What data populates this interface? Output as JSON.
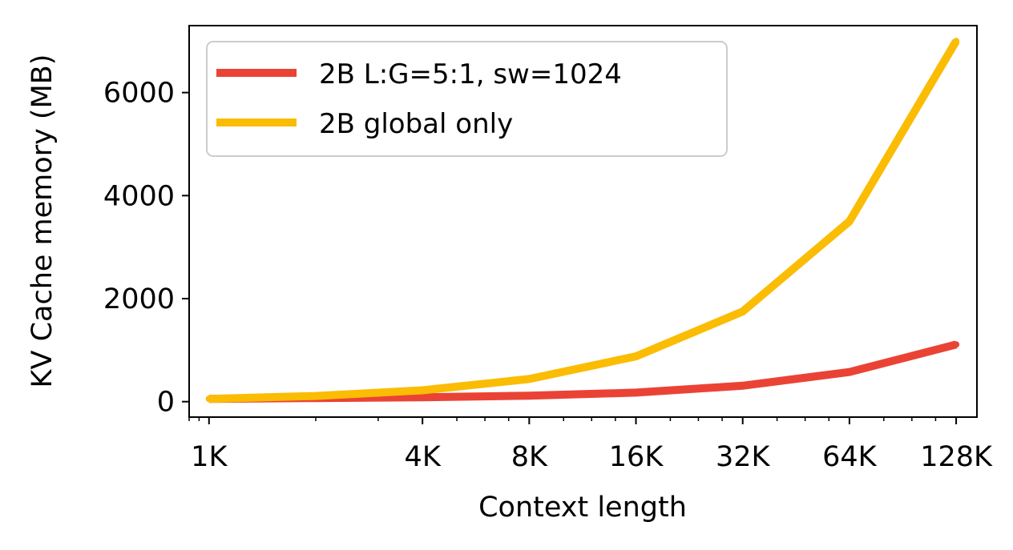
{
  "chart_data": {
    "type": "line",
    "xscale": "log2",
    "xlabel": "Context length",
    "ylabel": "KV Cache memory (MB)",
    "x": [
      1024,
      2048,
      4096,
      8192,
      16384,
      32768,
      65536,
      131072
    ],
    "x_ticks": [
      {
        "value": 1024,
        "label": "1K"
      },
      {
        "value": 4096,
        "label": "4K"
      },
      {
        "value": 8192,
        "label": "8K"
      },
      {
        "value": 16384,
        "label": "16K"
      },
      {
        "value": 32768,
        "label": "32K"
      },
      {
        "value": 65536,
        "label": "64K"
      },
      {
        "value": 131072,
        "label": "128K"
      }
    ],
    "y_ticks": [
      {
        "value": 0,
        "label": "0"
      },
      {
        "value": 2000,
        "label": "2000"
      },
      {
        "value": 4000,
        "label": "4000"
      },
      {
        "value": 6000,
        "label": "6000"
      }
    ],
    "xlim": [
      900,
      150000
    ],
    "ylim": [
      -300,
      7300
    ],
    "grid": false,
    "legend_position": "top-left",
    "series": [
      {
        "name": "2B L:G=5:1, sw=1024",
        "color": "#ea4335",
        "values": [
          55,
          70,
          85,
          115,
          175,
          310,
          575,
          1110
        ]
      },
      {
        "name": "2B global only",
        "color": "#fbbc04",
        "values": [
          55,
          110,
          220,
          440,
          880,
          1750,
          3500,
          7000
        ]
      }
    ]
  }
}
